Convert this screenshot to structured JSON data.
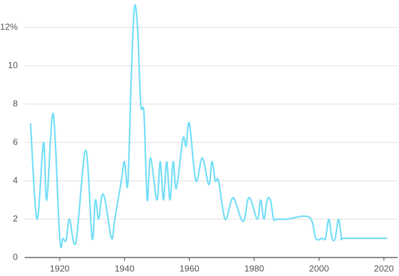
{
  "chart_data": {
    "type": "line",
    "x": [
      1911,
      1913,
      1915,
      1916,
      1918,
      1920,
      1921,
      1922,
      1923,
      1925,
      1928,
      1930,
      1931,
      1932,
      1933,
      1934,
      1936,
      1937,
      1939,
      1940,
      1941,
      1942,
      1943,
      1944,
      1945,
      1946,
      1947,
      1948,
      1950,
      1951,
      1952,
      1953,
      1954,
      1955,
      1956,
      1958,
      1959,
      1960,
      1962,
      1964,
      1966,
      1967,
      1968,
      1969,
      1971,
      1973,
      1974,
      1976,
      1977,
      1978,
      1979,
      1981,
      1982,
      1983,
      1984,
      1985,
      1986,
      1987,
      1990,
      1997,
      1999,
      2001,
      2002,
      2003,
      2004,
      2005,
      2006,
      2007,
      2008,
      2021
    ],
    "values": [
      7,
      2,
      6,
      3,
      7.5,
      1,
      1,
      0.9,
      2,
      0.8,
      5.6,
      1,
      3,
      2,
      3.2,
      3,
      1,
      2,
      4,
      5,
      3.8,
      9,
      13,
      12,
      8,
      7.5,
      3,
      5.2,
      3,
      5,
      3,
      5,
      3,
      5,
      3.6,
      6.2,
      5.8,
      7,
      4,
      5.2,
      3.8,
      5,
      4,
      4,
      2,
      3,
      3,
      2,
      2,
      3,
      3,
      2,
      3,
      2,
      3,
      3,
      2,
      2,
      2,
      2.1,
      1,
      1,
      1,
      2,
      1,
      1,
      2,
      1,
      1,
      1
    ],
    "color": "#72def7",
    "xlim": [
      1910,
      2022
    ],
    "xticks": [
      1920,
      1940,
      1960,
      1980,
      2000,
      2020
    ],
    "ylim": [
      0,
      13.3
    ],
    "yticks": [
      0,
      2,
      4,
      6,
      8,
      10,
      {
        "value": 12,
        "label": "12%"
      }
    ],
    "grid": true
  }
}
